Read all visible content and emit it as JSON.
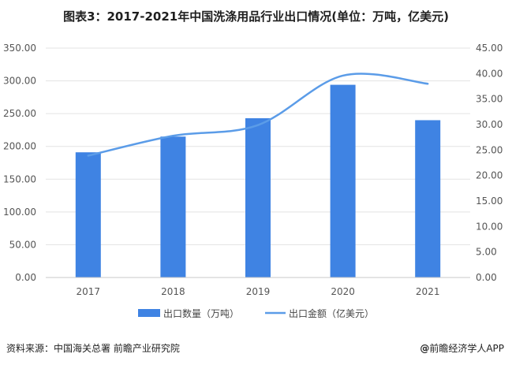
{
  "chart_data": {
    "type": "bar+line",
    "title": "图表3：2017-2021年中国洗涤用品行业出口情况(单位：万吨，亿美元)",
    "categories": [
      "2017",
      "2018",
      "2019",
      "2020",
      "2021"
    ],
    "series": [
      {
        "name": "出口数量（万吨）",
        "type": "bar",
        "axis": "left",
        "values": [
          191,
          215,
          243,
          294,
          240
        ]
      },
      {
        "name": "出口金额（亿美元）",
        "type": "line",
        "axis": "right",
        "values": [
          23.9,
          27.8,
          29.9,
          39.6,
          38.0
        ]
      }
    ],
    "y_left": {
      "ticks": [
        "0.00",
        "50.00",
        "100.00",
        "150.00",
        "200.00",
        "250.00",
        "300.00",
        "350.00"
      ],
      "ylim": [
        0,
        350
      ]
    },
    "y_right": {
      "ticks": [
        "0.00",
        "5.00",
        "10.00",
        "15.00",
        "20.00",
        "25.00",
        "30.00",
        "35.00",
        "40.00",
        "45.00"
      ],
      "ylim": [
        0,
        45
      ]
    },
    "grid": true,
    "legend_position": "bottom",
    "colors": {
      "bar": "#3f83e3",
      "line": "#5b9ce8",
      "grid": "#e3e3e3",
      "axis": "#c8c8c8"
    }
  },
  "footer": {
    "source": "资料来源：中国海关总署 前瞻产业研究院",
    "credit_at": "@",
    "credit": "前瞻经济学人APP"
  }
}
